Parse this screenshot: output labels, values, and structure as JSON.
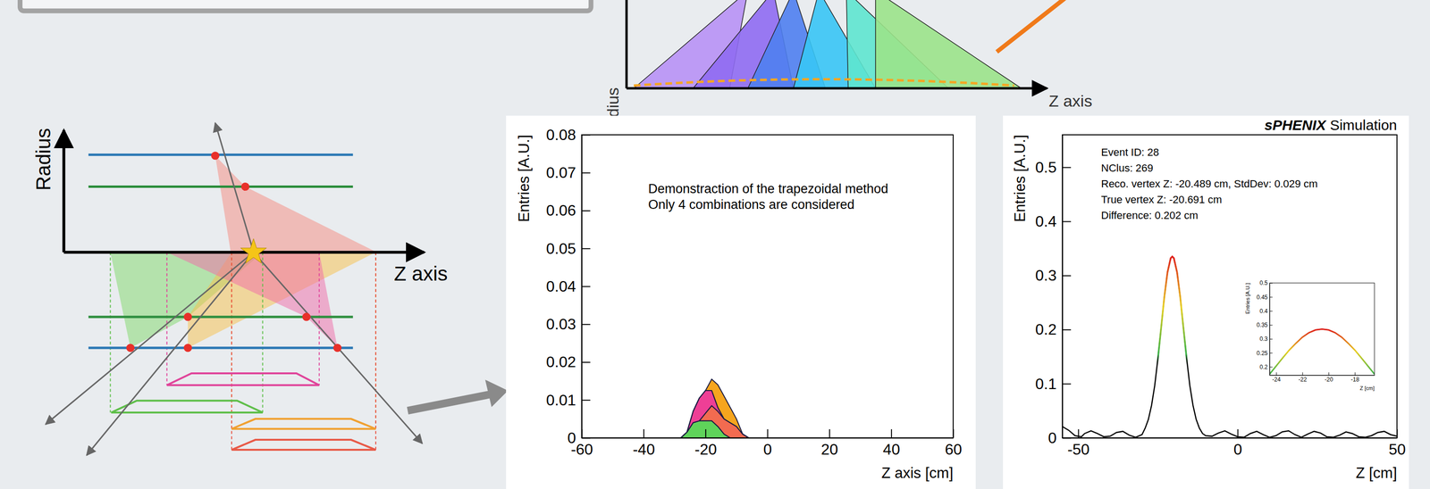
{
  "diagrams": {
    "top": {
      "y_label": "Radius",
      "x_label": "Z axis"
    },
    "left": {
      "y_label": "Radius",
      "x_label": "Z axis"
    }
  },
  "chart_data": [
    {
      "type": "area",
      "stacked": true,
      "annotations": [
        "Demonstraction of the trapezoidal method",
        "Only 4 combinations are considered"
      ],
      "x_label": "Z axis [cm]",
      "y_label": "Entries [A.U.]",
      "x": [
        -28,
        -26,
        -24,
        -22,
        -20,
        -18,
        -16,
        -14,
        -12,
        -10,
        -8,
        -6
      ],
      "series": [
        {
          "color": "#5fd35a",
          "values": [
            0,
            0.0015,
            0.004,
            0.0045,
            0.0045,
            0.0045,
            0.003,
            0.001,
            0,
            0,
            0,
            0
          ]
        },
        {
          "color": "#f26b50",
          "values": [
            0,
            0,
            0,
            0,
            0.002,
            0.004,
            0.004,
            0.004,
            0.004,
            0.003,
            0.001,
            0
          ]
        },
        {
          "color": "#ee3f96",
          "values": [
            0,
            0,
            0.003,
            0.006,
            0.006,
            0.004,
            0.001,
            0,
            0,
            0,
            0,
            0
          ]
        },
        {
          "color": "#f6a51e",
          "values": [
            0,
            0,
            0,
            0,
            0,
            0.003,
            0.006,
            0.006,
            0.004,
            0.002,
            0,
            0
          ]
        }
      ],
      "xlim": [
        -60,
        60
      ],
      "xticks": [
        -60,
        -40,
        -20,
        0,
        20,
        40,
        60
      ],
      "ylim": [
        0,
        0.08
      ],
      "yticks": [
        0,
        0.01,
        0.02,
        0.03,
        0.04,
        0.05,
        0.06,
        0.07,
        0.08
      ]
    },
    {
      "type": "line",
      "title": "sPHENIX Simulation",
      "annotations": [
        "Event ID: 28",
        "NClus: 269",
        "Reco. vertex Z: -20.489 cm, StdDev: 0.029 cm",
        "True vertex Z: -20.691 cm",
        "Difference: 0.202 cm"
      ],
      "x_label": "Z [cm]",
      "y_label": "Entries [A.U.]",
      "color": "#000000",
      "x": [
        -55,
        -53,
        -51,
        -49,
        -48,
        -46,
        -44,
        -42,
        -40,
        -38,
        -36,
        -34,
        -32,
        -30,
        -29,
        -28,
        -27,
        -26,
        -25,
        -24,
        -23,
        -22,
        -21,
        -20.5,
        -20,
        -19,
        -18,
        -17,
        -16,
        -15,
        -14,
        -13,
        -12,
        -11,
        -10,
        -8,
        -6,
        -4,
        -2,
        0,
        2,
        4,
        6,
        8,
        10,
        12,
        14,
        16,
        18,
        20,
        22,
        24,
        26,
        28,
        30,
        32,
        34,
        36,
        38,
        40,
        42,
        44,
        46,
        48,
        50
      ],
      "values": [
        0.021,
        0.014,
        0.004,
        0.002,
        0.008,
        0.013,
        0.008,
        0.002,
        0.003,
        0.01,
        0.012,
        0.005,
        0.001,
        0.006,
        0.018,
        0.034,
        0.06,
        0.097,
        0.147,
        0.203,
        0.26,
        0.306,
        0.332,
        0.335,
        0.332,
        0.306,
        0.26,
        0.203,
        0.147,
        0.097,
        0.06,
        0.034,
        0.018,
        0.008,
        0.004,
        0.003,
        0.009,
        0.013,
        0.007,
        0.002,
        0.001,
        0.008,
        0.012,
        0.006,
        0.001,
        0.004,
        0.011,
        0.013,
        0.006,
        0.001,
        0.007,
        0.012,
        0.009,
        0.002,
        0.001,
        0.005,
        0.011,
        0.008,
        0.002,
        0.001,
        0.004,
        0.01,
        0.012,
        0.006,
        0.003
      ],
      "xlim": [
        -55,
        50
      ],
      "xticks": [
        -50,
        0,
        50
      ],
      "ylim": [
        0,
        0.56
      ],
      "yticks": [
        0,
        0.1,
        0.2,
        0.3,
        0.4,
        0.5
      ]
    },
    {
      "type": "line",
      "x_label": "Z [cm]",
      "y_label": "Entries [A.U.]",
      "color": "#000000",
      "x": [
        -24.5,
        -24,
        -23.5,
        -23,
        -22.5,
        -22,
        -21.5,
        -21,
        -20.5,
        -20,
        -19.5,
        -19,
        -18.5,
        -18,
        -17.5,
        -17,
        -16.5
      ],
      "values": [
        0.174,
        0.203,
        0.232,
        0.26,
        0.284,
        0.306,
        0.322,
        0.332,
        0.335,
        0.332,
        0.322,
        0.306,
        0.284,
        0.26,
        0.232,
        0.203,
        0.174
      ],
      "xlim": [
        -24.5,
        -16.5
      ],
      "xticks": [
        -24,
        -22,
        -20,
        -18
      ],
      "ylim": [
        0.17,
        0.5
      ],
      "yticks": [
        0.2,
        0.25,
        0.3,
        0.35,
        0.4,
        0.45,
        0.5
      ]
    }
  ]
}
